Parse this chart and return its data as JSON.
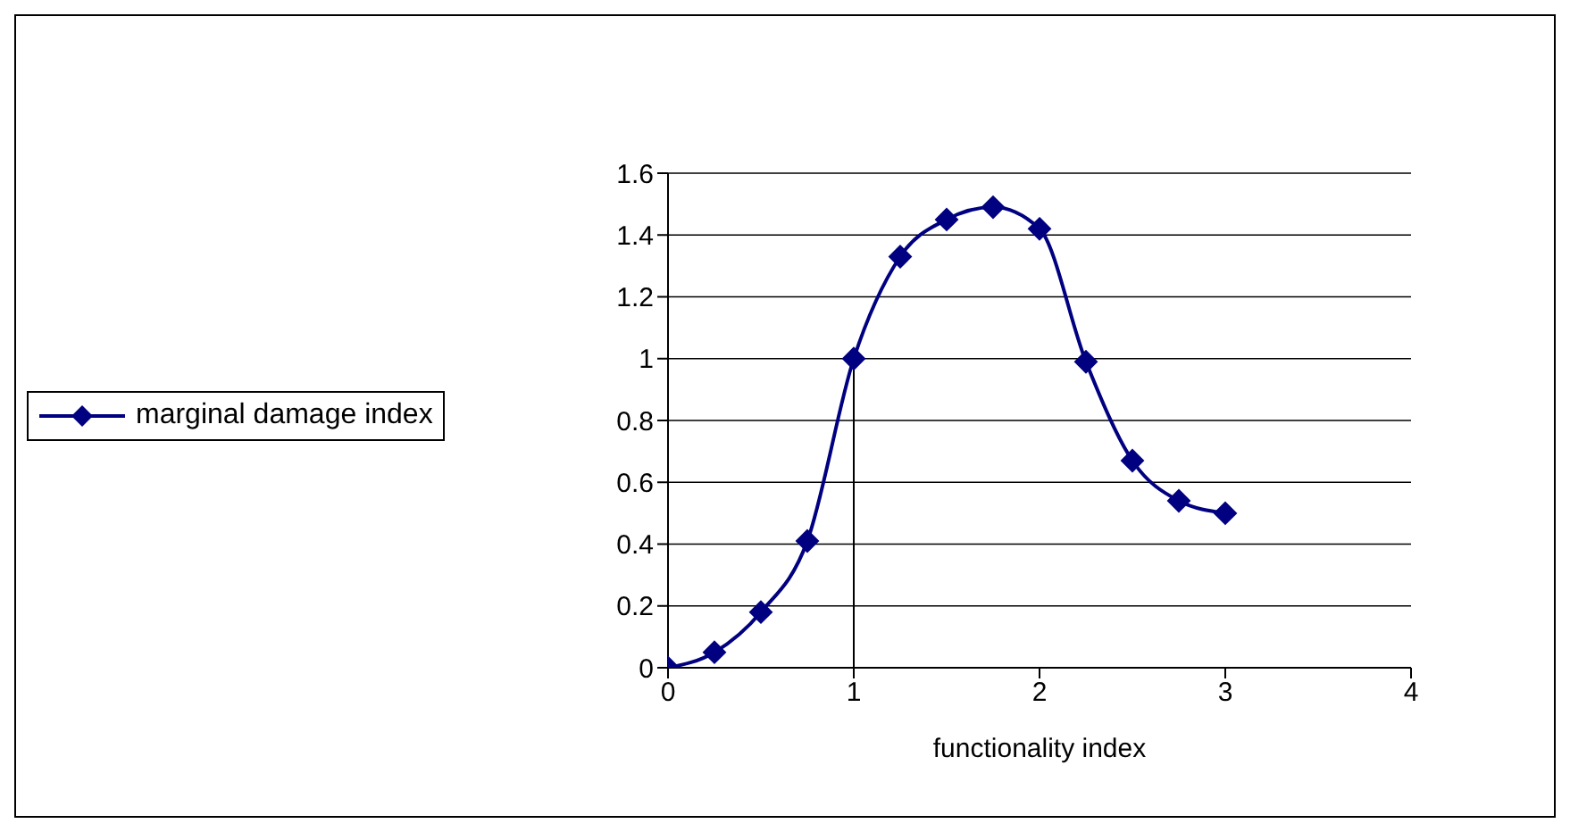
{
  "chart_data": {
    "type": "line",
    "xlabel": "functionality index",
    "series": [
      {
        "name": "marginal damage index",
        "color": "#000080",
        "x": [
          0,
          0.25,
          0.5,
          0.75,
          1,
          1.25,
          1.5,
          1.75,
          2,
          2.25,
          2.5,
          2.75,
          3
        ],
        "values": [
          0,
          0.05,
          0.18,
          0.41,
          1,
          1.33,
          1.45,
          1.49,
          1.42,
          0.99,
          0.67,
          0.54,
          0.5
        ]
      }
    ],
    "xlim": [
      0,
      4
    ],
    "xticks": [
      0,
      1,
      2,
      3,
      4
    ],
    "ylim": [
      0,
      1.6
    ],
    "yticks": [
      0,
      0.2,
      0.4,
      0.6,
      0.8,
      1,
      1.2,
      1.4,
      1.6
    ],
    "ref_lines": [
      {
        "axis": "x",
        "value": 1,
        "color": "#000000"
      }
    ],
    "grid": "y",
    "legend": "left",
    "marker": "diamond",
    "line_style": "solid"
  }
}
